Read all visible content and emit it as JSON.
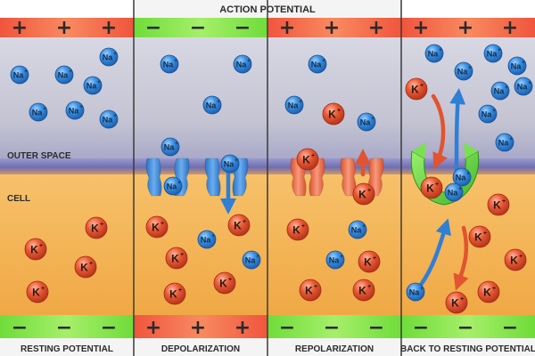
{
  "title": "ACTION POTENTIAL",
  "regions": {
    "outer": "OUTER SPACE",
    "cell": "CELL"
  },
  "ions": {
    "sodium": "Na",
    "potassium": "K"
  },
  "panels": [
    {
      "caption": "RESTING POTENTIAL",
      "top_signs": [
        "+",
        "+",
        "+"
      ],
      "bottom_signs": [
        "−",
        "−",
        "−"
      ]
    },
    {
      "caption": "DEPOLARIZATION",
      "top_signs": [
        "−",
        "−",
        "−"
      ],
      "bottom_signs": [
        "+",
        "+",
        "+"
      ]
    },
    {
      "caption": "REPOLARIZATION",
      "top_signs": [
        "+",
        "+",
        "+"
      ],
      "bottom_signs": [
        "−",
        "−",
        "−"
      ]
    },
    {
      "caption": "BACK TO RESTING POTENTIAL",
      "top_signs": [
        "+",
        "+",
        "+"
      ],
      "bottom_signs": [
        "−",
        "−",
        "−"
      ]
    }
  ],
  "colors": {
    "positive_band": "#f2664a",
    "negative_band": "#7ee04a",
    "outer_space": "#c9c9d6",
    "cell": "#f5b65a",
    "membrane": "#7f7fc0",
    "sodium_ion": "#2f7fd0",
    "potassium_ion": "#e24b2c",
    "sodium_channel": "#3a86d6",
    "potassium_channel": "#ec6a48",
    "pump": "#5bd03a"
  }
}
